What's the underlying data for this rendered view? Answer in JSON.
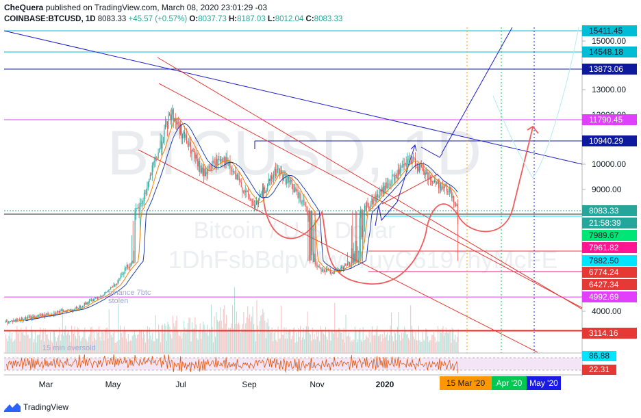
{
  "header": {
    "author": "CheQuera",
    "published_text": "published on TradingView.com, March 08, 2020 23:01:29 -03",
    "symbol": "COINBASE:BTCUSD, 1D",
    "last": "8083.33",
    "change": "+45.57 (+0.57%)",
    "open": "8037.73",
    "high": "8187.03",
    "low": "8012.04",
    "close": "8083.33"
  },
  "watermark": {
    "symbol": "BTCUSD, 1D",
    "name": "Bitcoin / U.S. Dollar",
    "address": "1DhFsbBdpv4wsTuyC6197hyMcFE"
  },
  "chart_data": {
    "type": "line",
    "price_axis": {
      "ticks": [
        {
          "label": "15000.00",
          "value": 15000
        },
        {
          "label": "13000.00",
          "value": 13000
        },
        {
          "label": "10000.00",
          "value": 10000
        },
        {
          "label": "9000.00",
          "value": 9000
        },
        {
          "label": "4000.00",
          "value": 4000
        }
      ],
      "hidden_ticks": [
        "12000.00"
      ]
    },
    "time_axis": [
      "Mar",
      "May",
      "Jul",
      "Sep",
      "Nov",
      "2020"
    ],
    "horizontal_levels": [
      {
        "label": "15411.45",
        "value": 15411.45,
        "color": "#00bcd4",
        "dark_text": true
      },
      {
        "label": "14548.18",
        "value": 14548.18,
        "color": "#00bcd4",
        "dark_text": true
      },
      {
        "label": "13873.06",
        "value": 13873.06,
        "color": "#0d1a9e"
      },
      {
        "label": "11790.45",
        "value": 11790.45,
        "color": "#e040fb"
      },
      {
        "label": "10940.29",
        "value": 10940.29,
        "color": "#0d1a9e"
      },
      {
        "label": "8083.33",
        "value": 8083.33,
        "color": "#26a69a"
      },
      {
        "label": "21:58:39",
        "value": 7950,
        "color": "#26a69a",
        "no_line": true
      },
      {
        "label": "7989.67",
        "value": 7989.67,
        "color": "#00e676",
        "dark_text": true
      },
      {
        "label": "7961.82",
        "value": 7961.82,
        "color": "#ff1493"
      },
      {
        "label": "7882.50",
        "value": 7882.5,
        "color": "#00e5ff",
        "dark_text": true
      },
      {
        "label": "6774.24",
        "value": 6774.24,
        "color": "#e53935"
      },
      {
        "label": "6427.34",
        "value": 6427.34,
        "color": "#e53935"
      },
      {
        "label": "4992.69",
        "value": 4992.69,
        "color": "#e040fb"
      },
      {
        "label": "3114.16",
        "value": 3114.16,
        "color": "#e53935"
      }
    ],
    "date_markers": [
      {
        "label": "15 Mar '20",
        "color": "#ff9800"
      },
      {
        "label": "Apr '20",
        "color": "#00c853"
      },
      {
        "label": "May '20",
        "color": "#1a1ae6"
      }
    ],
    "annotations": [
      "binance 7btc stolen",
      "15 min oversold"
    ],
    "rsi_levels": [
      {
        "label": "86.88",
        "color": "#00e5ff"
      },
      {
        "label": "22.31",
        "color": "#e53935"
      }
    ],
    "series": [
      {
        "values": [
          3500,
          3820,
          4150,
          5200,
          7300,
          8400,
          12100,
          10800,
          9600,
          10300,
          8300,
          9800,
          9200,
          7300,
          7200,
          8600,
          10200,
          9300,
          8900,
          8083
        ]
      }
    ]
  },
  "footer": {
    "brand": "TradingView"
  }
}
